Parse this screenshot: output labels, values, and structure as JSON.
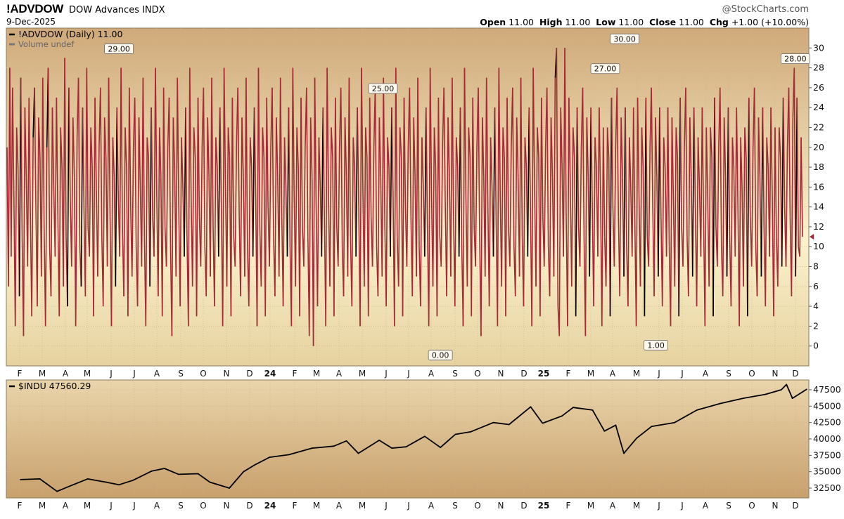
{
  "header": {
    "symbol": "!ADVDOW",
    "name": "DOW Advances INDX",
    "date": "9-Dec-2025",
    "brand": "@StockCharts.com",
    "quote": [
      {
        "label": "Open",
        "value": "11.00"
      },
      {
        "label": "High",
        "value": "11.00"
      },
      {
        "label": "Low",
        "value": "11.00"
      },
      {
        "label": "Close",
        "value": "11.00"
      },
      {
        "label": "Chg",
        "value": "+1.00 (+10.00%)"
      }
    ]
  },
  "colors": {
    "panel_top": "#cfa979",
    "panel_mid": "#fbf2cc",
    "panel_bottom": "#e6d2a0",
    "lower_top": "#ead5ab",
    "lower_bottom": "#c8a06c",
    "advances_line": "#a52a36",
    "advances_up": "#000000",
    "index_line": "#000000",
    "grid": "#c9b48f"
  },
  "chart_data": [
    {
      "type": "line",
      "series": [
        {
          "name": "!ADVDOW (Daily) 11.00"
        },
        {
          "name": "Volume undef"
        }
      ],
      "ylim": [
        -2,
        32
      ],
      "y_ticks": [
        0,
        2,
        4,
        6,
        8,
        10,
        12,
        14,
        16,
        18,
        20,
        22,
        24,
        26,
        28,
        30
      ],
      "x_ticks": [
        "F",
        "M",
        "A",
        "M",
        "J",
        "J",
        "A",
        "S",
        "O",
        "N",
        "D",
        "24",
        "F",
        "M",
        "A",
        "M",
        "J",
        "J",
        "A",
        "S",
        "O",
        "N",
        "D",
        "25",
        "F",
        "M",
        "A",
        "M",
        "J",
        "J",
        "A",
        "S",
        "O",
        "N",
        "D"
      ],
      "annotations": [
        {
          "label": "29.00",
          "x": "2023-06-01",
          "y": 29
        },
        {
          "label": "25.00",
          "x": "2024-05-20",
          "y": 25
        },
        {
          "label": "0.00",
          "x": "2024-08-05",
          "y": 0
        },
        {
          "label": "27.00",
          "x": "2025-03-14",
          "y": 27
        },
        {
          "label": "30.00",
          "x": "2025-04-09",
          "y": 30
        },
        {
          "label": "1.00",
          "x": "2025-05-21",
          "y": 1
        },
        {
          "label": "28.00",
          "x": "2025-11-24",
          "y": 28
        }
      ],
      "approx_daily_values": [
        20,
        6,
        28,
        9,
        26,
        15,
        2,
        22,
        18,
        5,
        27,
        11,
        1,
        24,
        17,
        8,
        25,
        13,
        3,
        21,
        26,
        14,
        4,
        23,
        19,
        7,
        27,
        12,
        2,
        20,
        28,
        10,
        5,
        24,
        16,
        9,
        25,
        13,
        3,
        22,
        18,
        6,
        29,
        11,
        4,
        26,
        15,
        8,
        23,
        17,
        2,
        21,
        27,
        10,
        6,
        24,
        14,
        5,
        28,
        12,
        9,
        22,
        18,
        3,
        25,
        16,
        7,
        20,
        26,
        11,
        4,
        23,
        19,
        8,
        27,
        13,
        2,
        21,
        17,
        6,
        24,
        15,
        9,
        28,
        12,
        5,
        22,
        18,
        3,
        26,
        14,
        7,
        20,
        25,
        10,
        4,
        23,
        16,
        8,
        27,
        11,
        2,
        21,
        19,
        6,
        24,
        13,
        9,
        28,
        15,
        5,
        22,
        17,
        3,
        26,
        12,
        8,
        20,
        25,
        10,
        1,
        23,
        18,
        7,
        27,
        14,
        4,
        21,
        16,
        9,
        24,
        11,
        2,
        28,
        15,
        6,
        22,
        19,
        3,
        25,
        13,
        8,
        20,
        26,
        10,
        5,
        23,
        17,
        7,
        27,
        12,
        4,
        21,
        18,
        9,
        24,
        14,
        2,
        28,
        16,
        6,
        22,
        19,
        3,
        25,
        11,
        8,
        20,
        26,
        13,
        5,
        23,
        17,
        7,
        27,
        10,
        4,
        21,
        18,
        9,
        24,
        15,
        2,
        28,
        12,
        6,
        22,
        19,
        3,
        25,
        14,
        8,
        20,
        26,
        11,
        5,
        23,
        17,
        7,
        27,
        13,
        4,
        21,
        16,
        9,
        24,
        10,
        2,
        28,
        15,
        6,
        22,
        18,
        3,
        25,
        12,
        8,
        20,
        26,
        11,
        1,
        23,
        17,
        0,
        27,
        14,
        4,
        21,
        16,
        9,
        24,
        13,
        2,
        28,
        15,
        6,
        22,
        19,
        3,
        25,
        12,
        8,
        20,
        26,
        10,
        5,
        23,
        17,
        7,
        27,
        11,
        4,
        21,
        18,
        9,
        24,
        14,
        2,
        28,
        16,
        6,
        22,
        19,
        3,
        25,
        13,
        8,
        20,
        26,
        10,
        5,
        23,
        17,
        7,
        27,
        12,
        4,
        21,
        18,
        9,
        24,
        15,
        2,
        28,
        11,
        6,
        22,
        19,
        3,
        25,
        14,
        8,
        20,
        26,
        13,
        5,
        23,
        17,
        7,
        27,
        10,
        4,
        21,
        16,
        9,
        24,
        12,
        2,
        28,
        15,
        6,
        22,
        18,
        3,
        25,
        11,
        8,
        20,
        26,
        14,
        5,
        23,
        17,
        7,
        27,
        13,
        4,
        21,
        18,
        9,
        24,
        10,
        2,
        28,
        15,
        6,
        22,
        19,
        3,
        25,
        12,
        8,
        20,
        26,
        11,
        1,
        23,
        17,
        7,
        27,
        14,
        4,
        21,
        16,
        9,
        24,
        13,
        2,
        28,
        15,
        6,
        22,
        19,
        3,
        25,
        12,
        8,
        20,
        26,
        10,
        5,
        23,
        17,
        7,
        27,
        11,
        4,
        21,
        18,
        9,
        24,
        14,
        2,
        28,
        16,
        6,
        22,
        19,
        3,
        25,
        13,
        8,
        20,
        26,
        10,
        5,
        23,
        17,
        7,
        27,
        30,
        4,
        1,
        24,
        18,
        9,
        30,
        13,
        2,
        25,
        16,
        6,
        22,
        19,
        3,
        24,
        12,
        8,
        20,
        26,
        11,
        1,
        23,
        17,
        7,
        24,
        14,
        4,
        21,
        18,
        9,
        24,
        15,
        2,
        22,
        11,
        6,
        22,
        19,
        3,
        25,
        14,
        8,
        20,
        26,
        13,
        5,
        23,
        17,
        7,
        24,
        10,
        4,
        21,
        16,
        9,
        24,
        12,
        2,
        25,
        15,
        6,
        22,
        18,
        3,
        25,
        11,
        8,
        20,
        26,
        14,
        5,
        23,
        17,
        7,
        24,
        13,
        4,
        21,
        18,
        9,
        24,
        10,
        2,
        23,
        15,
        6,
        22,
        19,
        3,
        25,
        12,
        8,
        20,
        26,
        11,
        5,
        23,
        17,
        7,
        24,
        14,
        4,
        21,
        16,
        9,
        24,
        13,
        2,
        22,
        15,
        6,
        22,
        19,
        3,
        25,
        12,
        8,
        20,
        26,
        10,
        5,
        23,
        17,
        7,
        24,
        11,
        4,
        21,
        18,
        9,
        24,
        14,
        2,
        21,
        16,
        6,
        22,
        19,
        3,
        25,
        13,
        8,
        20,
        26,
        10,
        5,
        23,
        17,
        7,
        24,
        12,
        4,
        21,
        18,
        9,
        24,
        15,
        3,
        22,
        11,
        6,
        22,
        19,
        8,
        25,
        14,
        8,
        20,
        26,
        13,
        5,
        23,
        28,
        7,
        25,
        10,
        9,
        21,
        11
      ]
    },
    {
      "type": "line",
      "series": [
        {
          "name": "$INDU 47560.29"
        }
      ],
      "ylim": [
        31000,
        49000
      ],
      "y_ticks": [
        32500,
        35000,
        37500,
        40000,
        42500,
        45000,
        47500
      ],
      "x_ticks": [
        "F",
        "M",
        "A",
        "M",
        "J",
        "J",
        "A",
        "S",
        "O",
        "N",
        "D",
        "24",
        "F",
        "M",
        "A",
        "M",
        "J",
        "J",
        "A",
        "S",
        "O",
        "N",
        "D",
        "25",
        "F",
        "M",
        "A",
        "M",
        "J",
        "J",
        "A",
        "S",
        "O",
        "N",
        "D"
      ],
      "x": [
        "2023-01-20",
        "2023-02-15",
        "2023-03-10",
        "2023-03-25",
        "2023-04-20",
        "2023-05-15",
        "2023-06-01",
        "2023-06-20",
        "2023-07-15",
        "2023-08-01",
        "2023-08-20",
        "2023-09-15",
        "2023-10-01",
        "2023-10-27",
        "2023-11-15",
        "2023-12-01",
        "2023-12-20",
        "2024-01-15",
        "2024-02-15",
        "2024-03-15",
        "2024-04-01",
        "2024-04-17",
        "2024-05-15",
        "2024-06-01",
        "2024-06-20",
        "2024-07-15",
        "2024-08-05",
        "2024-08-25",
        "2024-09-15",
        "2024-10-15",
        "2024-11-05",
        "2024-12-04",
        "2024-12-20",
        "2025-01-15",
        "2025-01-30",
        "2025-02-25",
        "2025-03-13",
        "2025-03-28",
        "2025-04-08",
        "2025-04-25",
        "2025-05-15",
        "2025-06-15",
        "2025-07-15",
        "2025-08-15",
        "2025-09-15",
        "2025-10-15",
        "2025-11-05",
        "2025-11-12",
        "2025-11-20",
        "2025-12-09"
      ],
      "values": [
        33800,
        33900,
        32000,
        32700,
        33900,
        33400,
        33000,
        33700,
        35100,
        35500,
        34600,
        34700,
        33400,
        32500,
        35000,
        36100,
        37200,
        37600,
        38600,
        38900,
        39700,
        37800,
        39800,
        38600,
        38800,
        40400,
        38700,
        40700,
        41100,
        42500,
        42200,
        44900,
        42400,
        43500,
        44800,
        44400,
        41200,
        42100,
        37800,
        40100,
        41900,
        42500,
        44400,
        45400,
        46200,
        46800,
        47500,
        48300,
        46200,
        47560
      ]
    }
  ]
}
